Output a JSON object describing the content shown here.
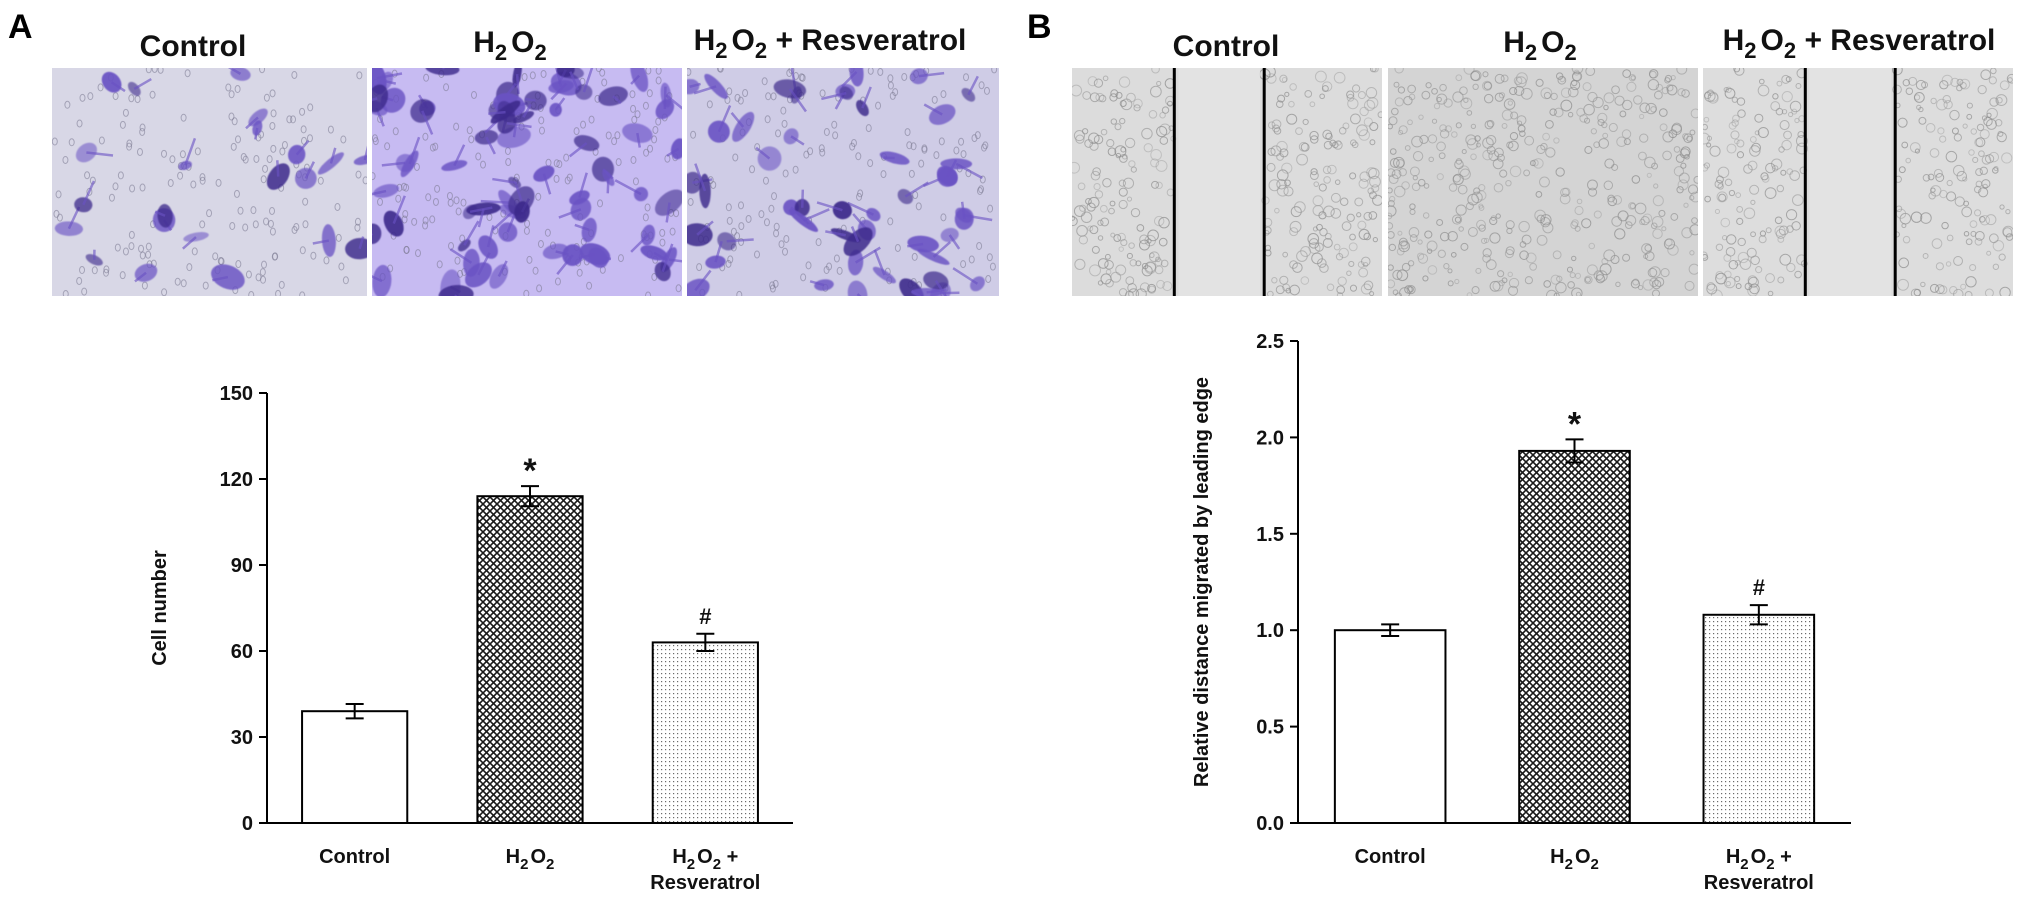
{
  "panels": [
    {
      "letter": "A",
      "image_labels": [
        {
          "base": "Control",
          "sub": ""
        },
        {
          "base": "H",
          "sub": "2",
          "base2": "O",
          "sub2": "2",
          "tail": ""
        },
        {
          "base": "H",
          "sub": "2",
          "base2": "O",
          "sub2": "2",
          "tail": " + Resveratrol"
        }
      ],
      "image_kind": "stained",
      "stain_color": "#6a52c4",
      "image_bg": [
        "#d8d7e6",
        "#c7bbf2",
        "#cfcce6"
      ]
    },
    {
      "letter": "B",
      "image_labels": [
        {
          "base": "Control",
          "sub": ""
        },
        {
          "base": "H",
          "sub": "2",
          "base2": "O",
          "sub2": "2",
          "tail": ""
        },
        {
          "base": "H",
          "sub": "2",
          "base2": "O",
          "sub2": "2",
          "tail": " + Resveratrol"
        }
      ],
      "image_kind": "wound",
      "image_bg": [
        "#dcdcdc",
        "#d4d4d4",
        "#dddddd"
      ]
    }
  ],
  "chart_data": [
    {
      "type": "bar",
      "title": "",
      "xlabel": "",
      "ylabel": "Cell number",
      "categories": [
        "Control",
        "H2O2",
        "H2O2 + Resveratrol"
      ],
      "category_labels": [
        {
          "line1_base": "Control"
        },
        {
          "line1_base": "H",
          "line1_sub": "2",
          "line1_base2": "O",
          "line1_sub2": "2"
        },
        {
          "line1_base": "H",
          "line1_sub": "2",
          "line1_base2": "O",
          "line1_sub2": "2",
          "line1_tail": " +",
          "line2": "Resveratrol"
        }
      ],
      "values": [
        39,
        114,
        63
      ],
      "errors": [
        2.5,
        3.5,
        3
      ],
      "annotations": [
        "",
        "*",
        "#"
      ],
      "patterns": [
        "none",
        "crosshatch",
        "dots"
      ],
      "ylim": [
        0,
        150
      ],
      "yticks": [
        0,
        30,
        60,
        90,
        120,
        150
      ],
      "ytick_labels": [
        "0",
        "30",
        "60",
        "90",
        "120",
        "150"
      ]
    },
    {
      "type": "bar",
      "title": "",
      "xlabel": "",
      "ylabel": "Relative distance migrated by  leading edge",
      "categories": [
        "Control",
        "H2O2",
        "H2O2 + Resveratrol"
      ],
      "category_labels": [
        {
          "line1_base": "Control"
        },
        {
          "line1_base": "H",
          "line1_sub": "2",
          "line1_base2": "O",
          "line1_sub2": "2"
        },
        {
          "line1_base": "H",
          "line1_sub": "2",
          "line1_base2": "O",
          "line1_sub2": "2",
          "line1_tail": " +",
          "line2": "Resveratrol"
        }
      ],
      "values": [
        1.0,
        1.93,
        1.08
      ],
      "errors": [
        0.03,
        0.06,
        0.05
      ],
      "annotations": [
        "",
        "*",
        "#"
      ],
      "patterns": [
        "none",
        "crosshatch",
        "dots"
      ],
      "ylim": [
        0,
        2.5
      ],
      "yticks": [
        0,
        0.5,
        1.0,
        1.5,
        2.0,
        2.5
      ],
      "ytick_labels": [
        "0.0",
        "0.5",
        "1.0",
        "1.5",
        "2.0",
        "2.5"
      ]
    }
  ]
}
